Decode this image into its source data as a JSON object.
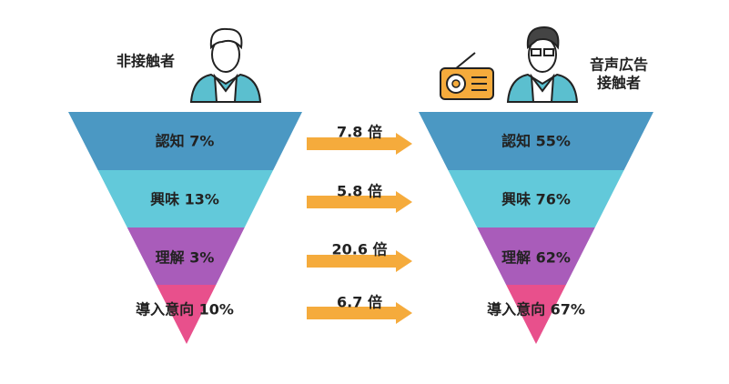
{
  "left": {
    "title": "非接触者",
    "stages": [
      "認知 7%",
      "興味 13%",
      "理解 3%",
      "導入意向 10%"
    ]
  },
  "right": {
    "title": [
      "音声広告",
      "接触者"
    ],
    "stages": [
      "認知 55%",
      "興味 76%",
      "理解 62%",
      "導入意向 67%"
    ]
  },
  "ratios": [
    "7.8 倍",
    "5.8 倍",
    "20.6 倍",
    "6.7 倍"
  ]
}
